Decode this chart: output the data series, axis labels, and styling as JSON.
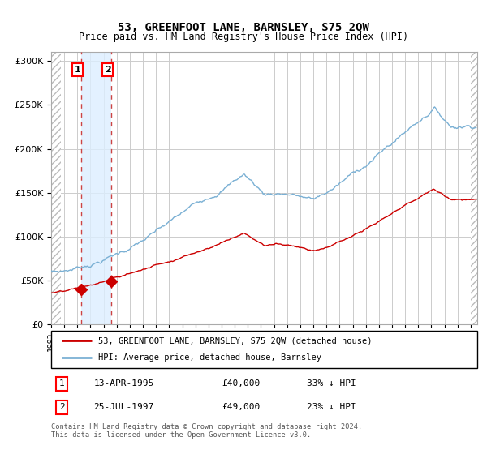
{
  "title": "53, GREENFOOT LANE, BARNSLEY, S75 2QW",
  "subtitle": "Price paid vs. HM Land Registry's House Price Index (HPI)",
  "legend_label_red": "53, GREENFOOT LANE, BARNSLEY, S75 2QW (detached house)",
  "legend_label_blue": "HPI: Average price, detached house, Barnsley",
  "transaction1_date": "13-APR-1995",
  "transaction1_price": "£40,000",
  "transaction1_hpi": "33% ↓ HPI",
  "transaction1_x": 1995.28,
  "transaction1_y": 40000,
  "transaction2_date": "25-JUL-1997",
  "transaction2_price": "£49,000",
  "transaction2_hpi": "23% ↓ HPI",
  "transaction2_x": 1997.56,
  "transaction2_y": 49000,
  "ylim": [
    0,
    310000
  ],
  "xlim_start": 1993.0,
  "xlim_end": 2025.5,
  "hatch_left_end": 1993.75,
  "hatch_right_start": 2025.0,
  "background_color": "#ffffff",
  "plot_bg_color": "#ffffff",
  "grid_color": "#cccccc",
  "red_line_color": "#cc0000",
  "blue_line_color": "#7ab0d4",
  "dashed_line_color": "#cc4444",
  "shade_between_color": "#ddeeff",
  "footnote": "Contains HM Land Registry data © Crown copyright and database right 2024.\nThis data is licensed under the Open Government Licence v3.0."
}
